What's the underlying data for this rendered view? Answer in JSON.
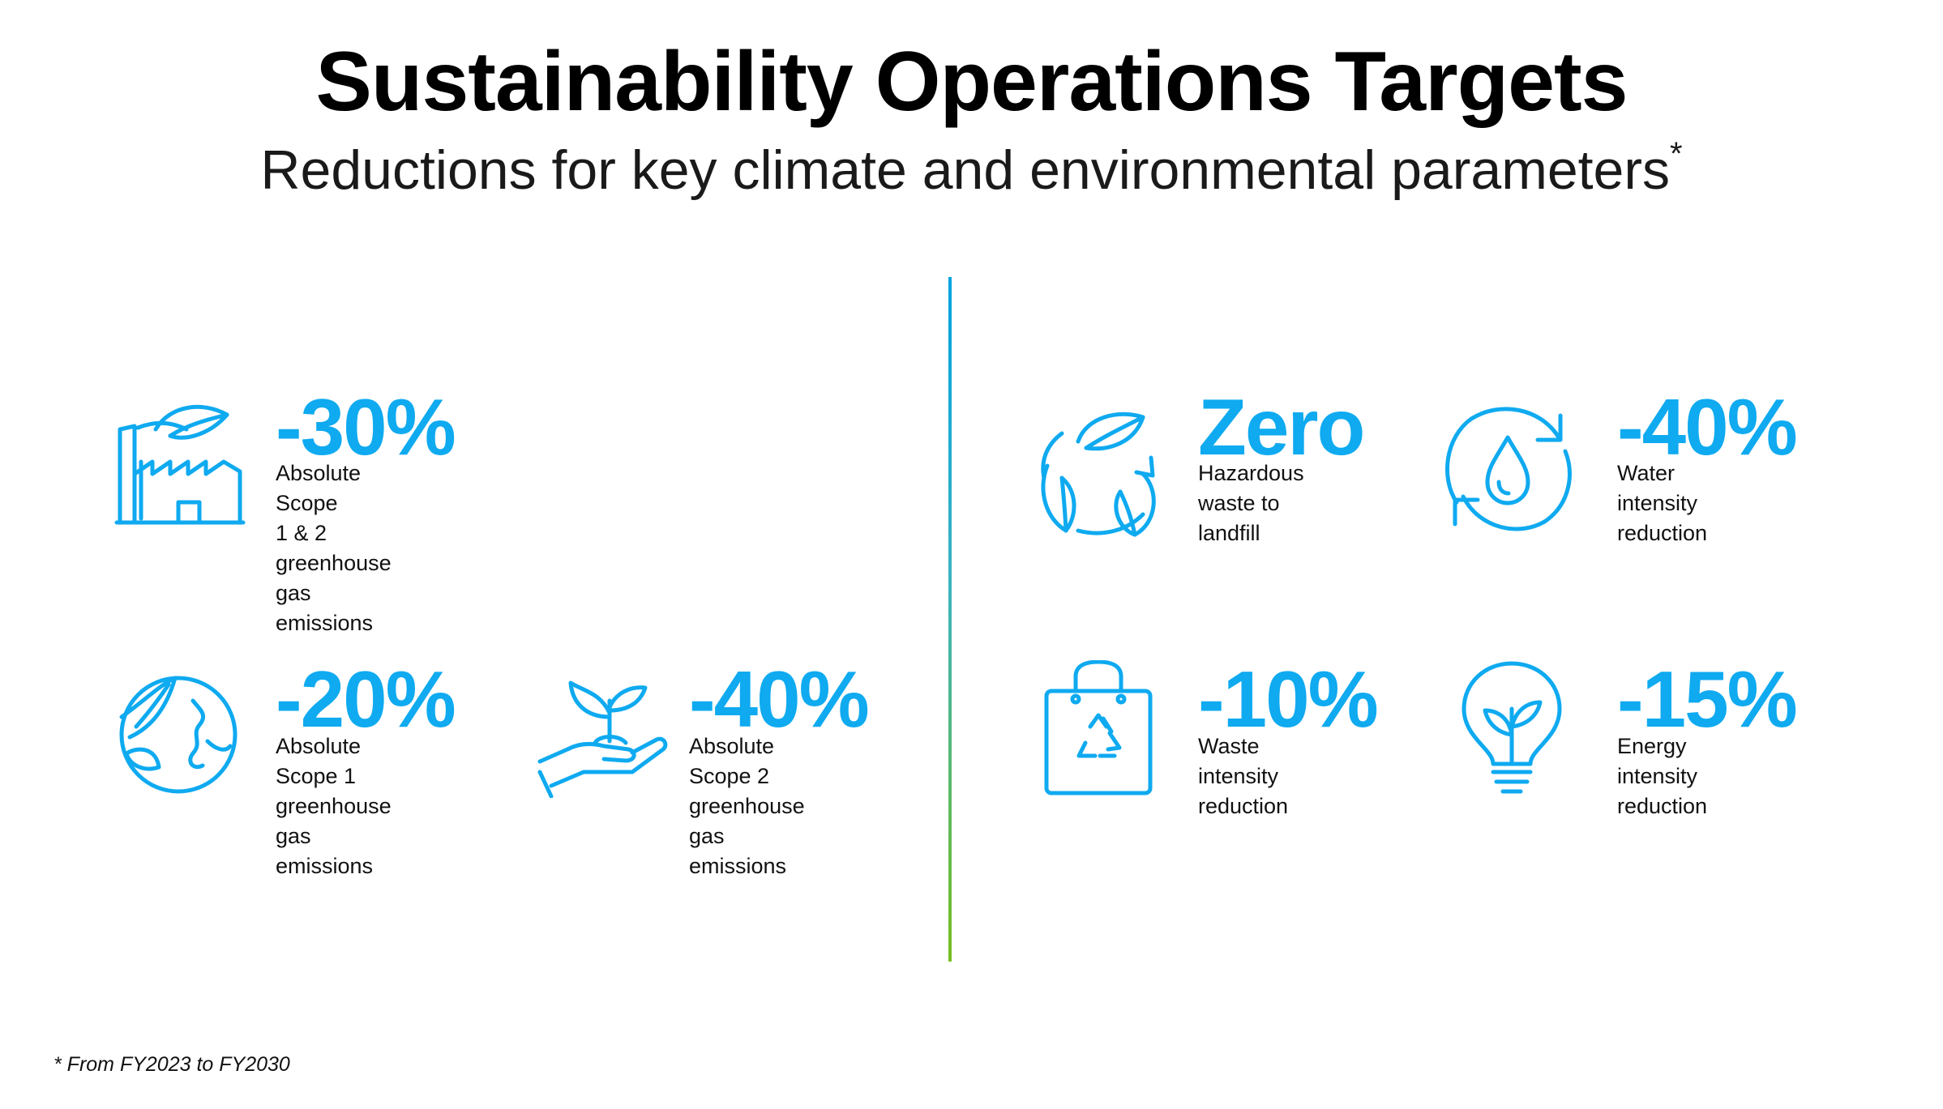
{
  "title": "Sustainability Operations Targets",
  "subtitle": "Reductions for key climate and environmental parameters",
  "subtitle_marker": "*",
  "accent_color": "#0faaf0",
  "divider_colors": [
    "#00a3e0",
    "#78be20"
  ],
  "targets": [
    {
      "icon": "factory-leaf-icon",
      "value": "-30%",
      "label": "Absolute Scope\n1 & 2 greenhouse\ngas emissions"
    },
    {
      "icon": "globe-leaf-icon",
      "value": "-20%",
      "label": "Absolute Scope 1\ngreenhouse gas\nemissions"
    },
    {
      "icon": "hand-sprout-icon",
      "value": "-40%",
      "label": "Absolute Scope 2\ngreenhouse gas\nemissions"
    },
    {
      "icon": "recycle-leaves-icon",
      "value": "Zero",
      "label": "Hazardous waste to\nlandfill"
    },
    {
      "icon": "water-drop-cycle-icon",
      "value": "-40%",
      "label": "Water intensity\nreduction"
    },
    {
      "icon": "recycle-bag-icon",
      "value": "-10%",
      "label": "Waste intensity\nreduction"
    },
    {
      "icon": "lightbulb-leaf-icon",
      "value": "-15%",
      "label": "Energy intensity\nreduction"
    }
  ],
  "footnote": "* From FY2023 to FY2030"
}
